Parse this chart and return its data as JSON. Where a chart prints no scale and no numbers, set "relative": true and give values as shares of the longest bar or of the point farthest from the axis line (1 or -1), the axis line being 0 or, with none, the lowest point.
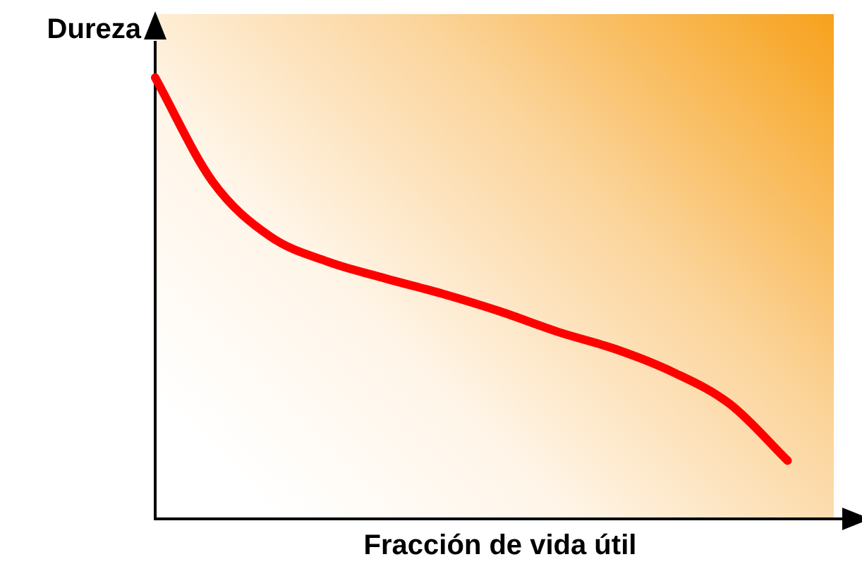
{
  "chart_data": {
    "type": "line",
    "relative": true,
    "xlabel": "Fracción de vida útil",
    "ylabel": "Dureza",
    "categories": [
      null,
      null,
      null,
      null,
      null,
      null,
      null,
      null,
      null,
      null,
      null,
      null,
      null
    ],
    "series": [
      {
        "color": "#ff0000",
        "values": [
          1.0,
          0.764,
          0.64,
          0.583,
          0.545,
          0.51,
          0.47,
          0.424,
          0.385,
          0.333,
          0.26,
          0.132,
          null
        ]
      }
    ],
    "grid": false,
    "legend": false,
    "marker": "none",
    "line_style": "solid"
  }
}
